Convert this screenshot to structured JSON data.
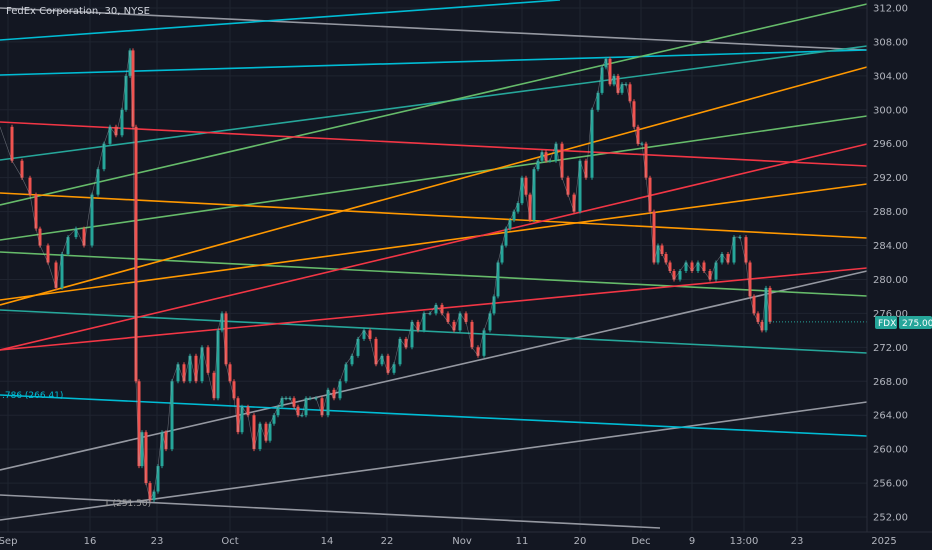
{
  "header": {
    "title": "FedEx Corporation, 30, NYSE"
  },
  "price_axis": {
    "ticks": [
      "312.00",
      "308.00",
      "304.00",
      "300.00",
      "296.00",
      "292.00",
      "288.00",
      "284.00",
      "280.00",
      "276.00",
      "272.00",
      "268.00",
      "264.00",
      "260.00",
      "256.00",
      "252.00"
    ]
  },
  "time_axis": {
    "labels": [
      "Sep",
      "16",
      "23",
      "Oct",
      "14",
      "22",
      "Nov",
      "11",
      "20",
      "Dec",
      "9",
      "13:00",
      "23",
      "2025"
    ]
  },
  "price_tag": {
    "symbol": "FDX",
    "value": "275.00",
    "symbol_color": "#26a69a",
    "value_color": "#26a69a"
  },
  "fib_labels": [
    {
      "text": ".786 (266.41)",
      "color": "#00bcd4"
    },
    {
      "text": "1 (251.50)",
      "color": "#9e9e9e"
    }
  ],
  "colors": {
    "up": "#26a69a",
    "down": "#ef5350",
    "background": "#131722",
    "grid": "#1f2430"
  },
  "chart_data": {
    "type": "line",
    "title": "FedEx Corporation, 30, NYSE",
    "xlabel": "",
    "ylabel": "",
    "ylim": [
      250.5,
      313
    ],
    "x_labels": [
      "Sep",
      "16",
      "23",
      "Oct",
      "14",
      "22",
      "Nov",
      "11",
      "20",
      "Dec",
      "9",
      "13:00",
      "23",
      "2025"
    ],
    "y_ticks": [
      252,
      256,
      260,
      264,
      268,
      272,
      276,
      280,
      284,
      288,
      292,
      296,
      300,
      304,
      308,
      312
    ],
    "last_price": 275.0,
    "grid": true,
    "series": [
      {
        "x": [
          0,
          12,
          22,
          30,
          36,
          40,
          48,
          56,
          62,
          68,
          76,
          84,
          92,
          98,
          104,
          110,
          116,
          122,
          126,
          130,
          133,
          136,
          139,
          142,
          146,
          150,
          154,
          158,
          162,
          166,
          172,
          178,
          184,
          190,
          196,
          202,
          208,
          214,
          218,
          222,
          226,
          230,
          234,
          238,
          242,
          248,
          254,
          260,
          266,
          270,
          274,
          278,
          282,
          286,
          290,
          294,
          298,
          302,
          306,
          310,
          316,
          322,
          328,
          334,
          340,
          346,
          352,
          358,
          364,
          370,
          376,
          382,
          388,
          394,
          400,
          406,
          412,
          418,
          424,
          430,
          436,
          442,
          448,
          454,
          460,
          466,
          472,
          478,
          484,
          490,
          494,
          498,
          502,
          506,
          510,
          514,
          518,
          522,
          526,
          530,
          534,
          538,
          542,
          546,
          550,
          556,
          562,
          568,
          574,
          580,
          586,
          592,
          598,
          602,
          606,
          610,
          614,
          618,
          622,
          626,
          630,
          634,
          638,
          642,
          646,
          650,
          654,
          658,
          662,
          666,
          670,
          674,
          680,
          686,
          692,
          698,
          704,
          710,
          716,
          722,
          728,
          734,
          740,
          746,
          750,
          754,
          758,
          762,
          766,
          770
        ],
        "y": [
          298,
          294,
          292,
          290,
          286,
          284,
          282,
          279,
          283,
          285,
          286,
          284,
          290,
          293,
          296,
          298,
          297,
          300,
          304,
          307,
          298,
          268,
          258,
          262,
          256,
          254,
          255,
          258,
          262,
          260,
          268,
          270,
          268,
          271,
          268,
          272,
          269,
          266,
          274,
          276,
          270,
          268,
          266,
          262,
          265,
          264,
          260,
          263,
          261,
          263,
          264,
          265,
          266,
          266,
          266,
          265,
          264,
          264,
          266,
          266,
          266,
          264,
          267,
          266,
          268,
          270,
          271,
          273,
          274,
          273,
          270,
          271,
          269,
          270,
          273,
          272,
          275,
          274,
          276,
          276,
          277,
          276,
          275,
          274,
          276,
          275,
          272,
          271,
          274,
          276,
          278,
          282,
          284,
          286,
          287,
          288,
          289,
          292,
          290,
          287,
          293,
          294,
          295,
          294,
          294,
          296,
          292,
          290,
          288,
          294,
          292,
          300,
          302,
          305,
          306,
          303,
          304,
          302,
          303,
          303,
          301,
          298,
          296,
          296,
          292,
          288,
          282,
          284,
          283,
          282,
          281,
          280,
          281,
          282,
          281,
          282,
          281,
          280,
          282,
          283,
          282,
          285,
          285,
          282,
          278,
          276,
          275,
          274,
          279,
          275
        ]
      }
    ]
  }
}
